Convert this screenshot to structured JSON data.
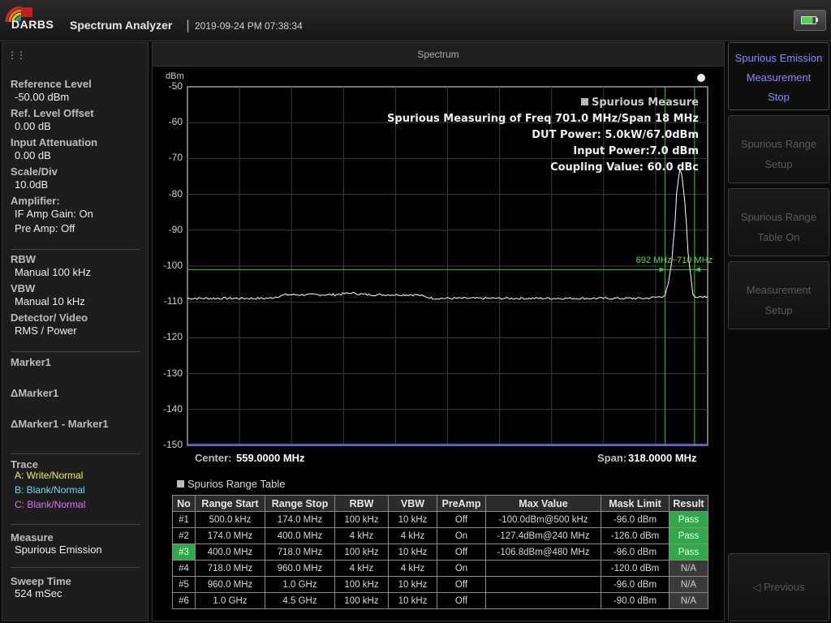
{
  "header": {
    "logo_text": "DARBS",
    "app_title": "Spectrum Analyzer",
    "separator": "|",
    "datetime": "2019-09-24 PM 07:38:34",
    "battery_icon": "battery-charging-icon"
  },
  "left_panel": {
    "grip_glyph": "⋮⋮",
    "reference_level": {
      "label": "Reference Level",
      "value": "-50.00 dBm"
    },
    "ref_level_offset": {
      "label": "Ref. Level Offset",
      "value": "0.00 dB"
    },
    "input_attenuation": {
      "label": "Input Attenuation",
      "value": "0.00 dB"
    },
    "scale_div": {
      "label": "Scale/Div",
      "value": "10.0dB"
    },
    "amplifier": {
      "label": "Amplifier:",
      "if_amp": "IF Amp Gain: On",
      "pre_amp": "Pre Amp: Off"
    },
    "rbw": {
      "label": "RBW",
      "value": "Manual 100 kHz"
    },
    "vbw": {
      "label": "VBW",
      "value": "Manual 10 kHz"
    },
    "detector": {
      "label": "Detector/ Video",
      "value": "RMS / Power"
    },
    "marker1": "Marker1",
    "delta_marker1": "ΔMarker1",
    "delta_minus_marker1": "ΔMarker1 - Marker1",
    "trace": {
      "label": "Trace",
      "a": {
        "text": "A: Write/Normal",
        "color": "#f0f060"
      },
      "b": {
        "text": "B: Blank/Normal",
        "color": "#70d8f0"
      },
      "c": {
        "text": "C: Blank/Normal",
        "color": "#e070f0"
      }
    },
    "measure": {
      "label": "Measure",
      "value": "Spurious Emission"
    },
    "sweep_time": {
      "label": "Sweep Time",
      "value": "524 mSec"
    }
  },
  "spectrum": {
    "title": "Spectrum",
    "unit": "dBm",
    "y_ticks": [
      "-50",
      "-60",
      "-70",
      "-80",
      "-90",
      "-100",
      "-110",
      "-120",
      "-130",
      "-140",
      "-150"
    ],
    "overlay": {
      "title": "Spurious Measure",
      "line1": "Spurious Measuring of Freq 701.0 MHz/Span 18 MHz",
      "line2": "DUT Power: 5.0kW/67.0dBm",
      "line3": "Input Power:7.0 dBm",
      "line4": "Coupling Value: 60.0 dBc"
    },
    "band_label": "692 MHz~710 MHz",
    "center_label": "Center:",
    "center_value": "559.0000 MHz",
    "span_label": "Span:",
    "span_value": "318.0000 MHz"
  },
  "chart_data": {
    "type": "line",
    "ylabel": "dBm",
    "ylim": [
      -150,
      -50
    ],
    "y_ticks": [
      -50,
      -60,
      -70,
      -80,
      -90,
      -100,
      -110,
      -120,
      -130,
      -140,
      -150
    ],
    "x_center_mhz": 559.0,
    "x_span_mhz": 318.0,
    "xlim": [
      400.0,
      718.0
    ],
    "grid": true,
    "threshold_dbm": -101,
    "band_mhz": [
      692,
      710
    ],
    "series": [
      {
        "color": "#ffffff",
        "x": [
          400,
          420,
          440,
          450,
          460,
          470,
          480,
          490,
          500,
          510,
          520,
          530,
          540,
          550,
          560,
          570,
          580,
          590,
          600,
          610,
          620,
          630,
          640,
          650,
          660,
          670,
          680,
          690,
          692,
          694,
          696,
          698,
          699,
          700,
          701,
          702,
          703,
          704,
          705,
          706,
          707,
          708,
          709,
          710,
          712,
          716,
          718
        ],
        "y": [
          -109,
          -109,
          -109,
          -109,
          -108,
          -108,
          -108,
          -108,
          -107.5,
          -108,
          -108,
          -108,
          -108,
          -109,
          -109,
          -109,
          -109,
          -109,
          -109,
          -109,
          -109,
          -109,
          -109,
          -109,
          -109,
          -109,
          -109,
          -108.5,
          -108,
          -105,
          -99,
          -88,
          -80,
          -76,
          -73,
          -74,
          -78,
          -82,
          -88,
          -96,
          -100,
          -104,
          -108,
          -108.5,
          -108.5,
          -108.5,
          -108.5
        ]
      }
    ]
  },
  "range_table": {
    "title": "Spurios Range Table",
    "columns": [
      "No",
      "Range Start",
      "Range Stop",
      "RBW",
      "VBW",
      "PreAmp",
      "Max Value",
      "Mask Limit",
      "Result"
    ],
    "rows": [
      [
        "#1",
        "500.0 kHz",
        "174.0 MHz",
        "100 kHz",
        "10 kHz",
        "Off",
        "-100.0dBm@500 kHz",
        "-96.0 dBm",
        "Pass"
      ],
      [
        "#2",
        "174.0 MHz",
        "400.0 MHz",
        "4 kHz",
        "4 kHz",
        "On",
        "-127.4dBm@240 MHz",
        "-126.0 dBm",
        "Pass"
      ],
      [
        "#3",
        "400.0 MHz",
        "718.0 MHz",
        "100 kHz",
        "10 kHz",
        "Off",
        "-106.8dBm@480 MHz",
        "-96.0 dBm",
        "Pass"
      ],
      [
        "#4",
        "718.0 MHz",
        "960.0 MHz",
        "4 kHz",
        "4 kHz",
        "On",
        "",
        "-120.0 dBm",
        "N/A"
      ],
      [
        "#5",
        "960.0 MHz",
        "1.0 GHz",
        "100 kHz",
        "10 kHz",
        "Off",
        "",
        "-96.0 dBm",
        "N/A"
      ],
      [
        "#6",
        "1.0 GHz",
        "4.5 GHz",
        "100 kHz",
        "10 kHz",
        "Off",
        "",
        "-90.0 dBm",
        "N/A"
      ]
    ]
  },
  "right_panel": {
    "stop": {
      "line1": "Spurious Emission",
      "line2": "Measurement",
      "line3": "Stop"
    },
    "range_setup": {
      "line1": "Spurious Range",
      "line2": "Setup"
    },
    "range_table_on": {
      "line1": "Spurious Range",
      "line2": "Table On"
    },
    "measurement_setup": {
      "line1": "Measurement",
      "line2": "Setup"
    },
    "previous": "◁ Previous"
  }
}
